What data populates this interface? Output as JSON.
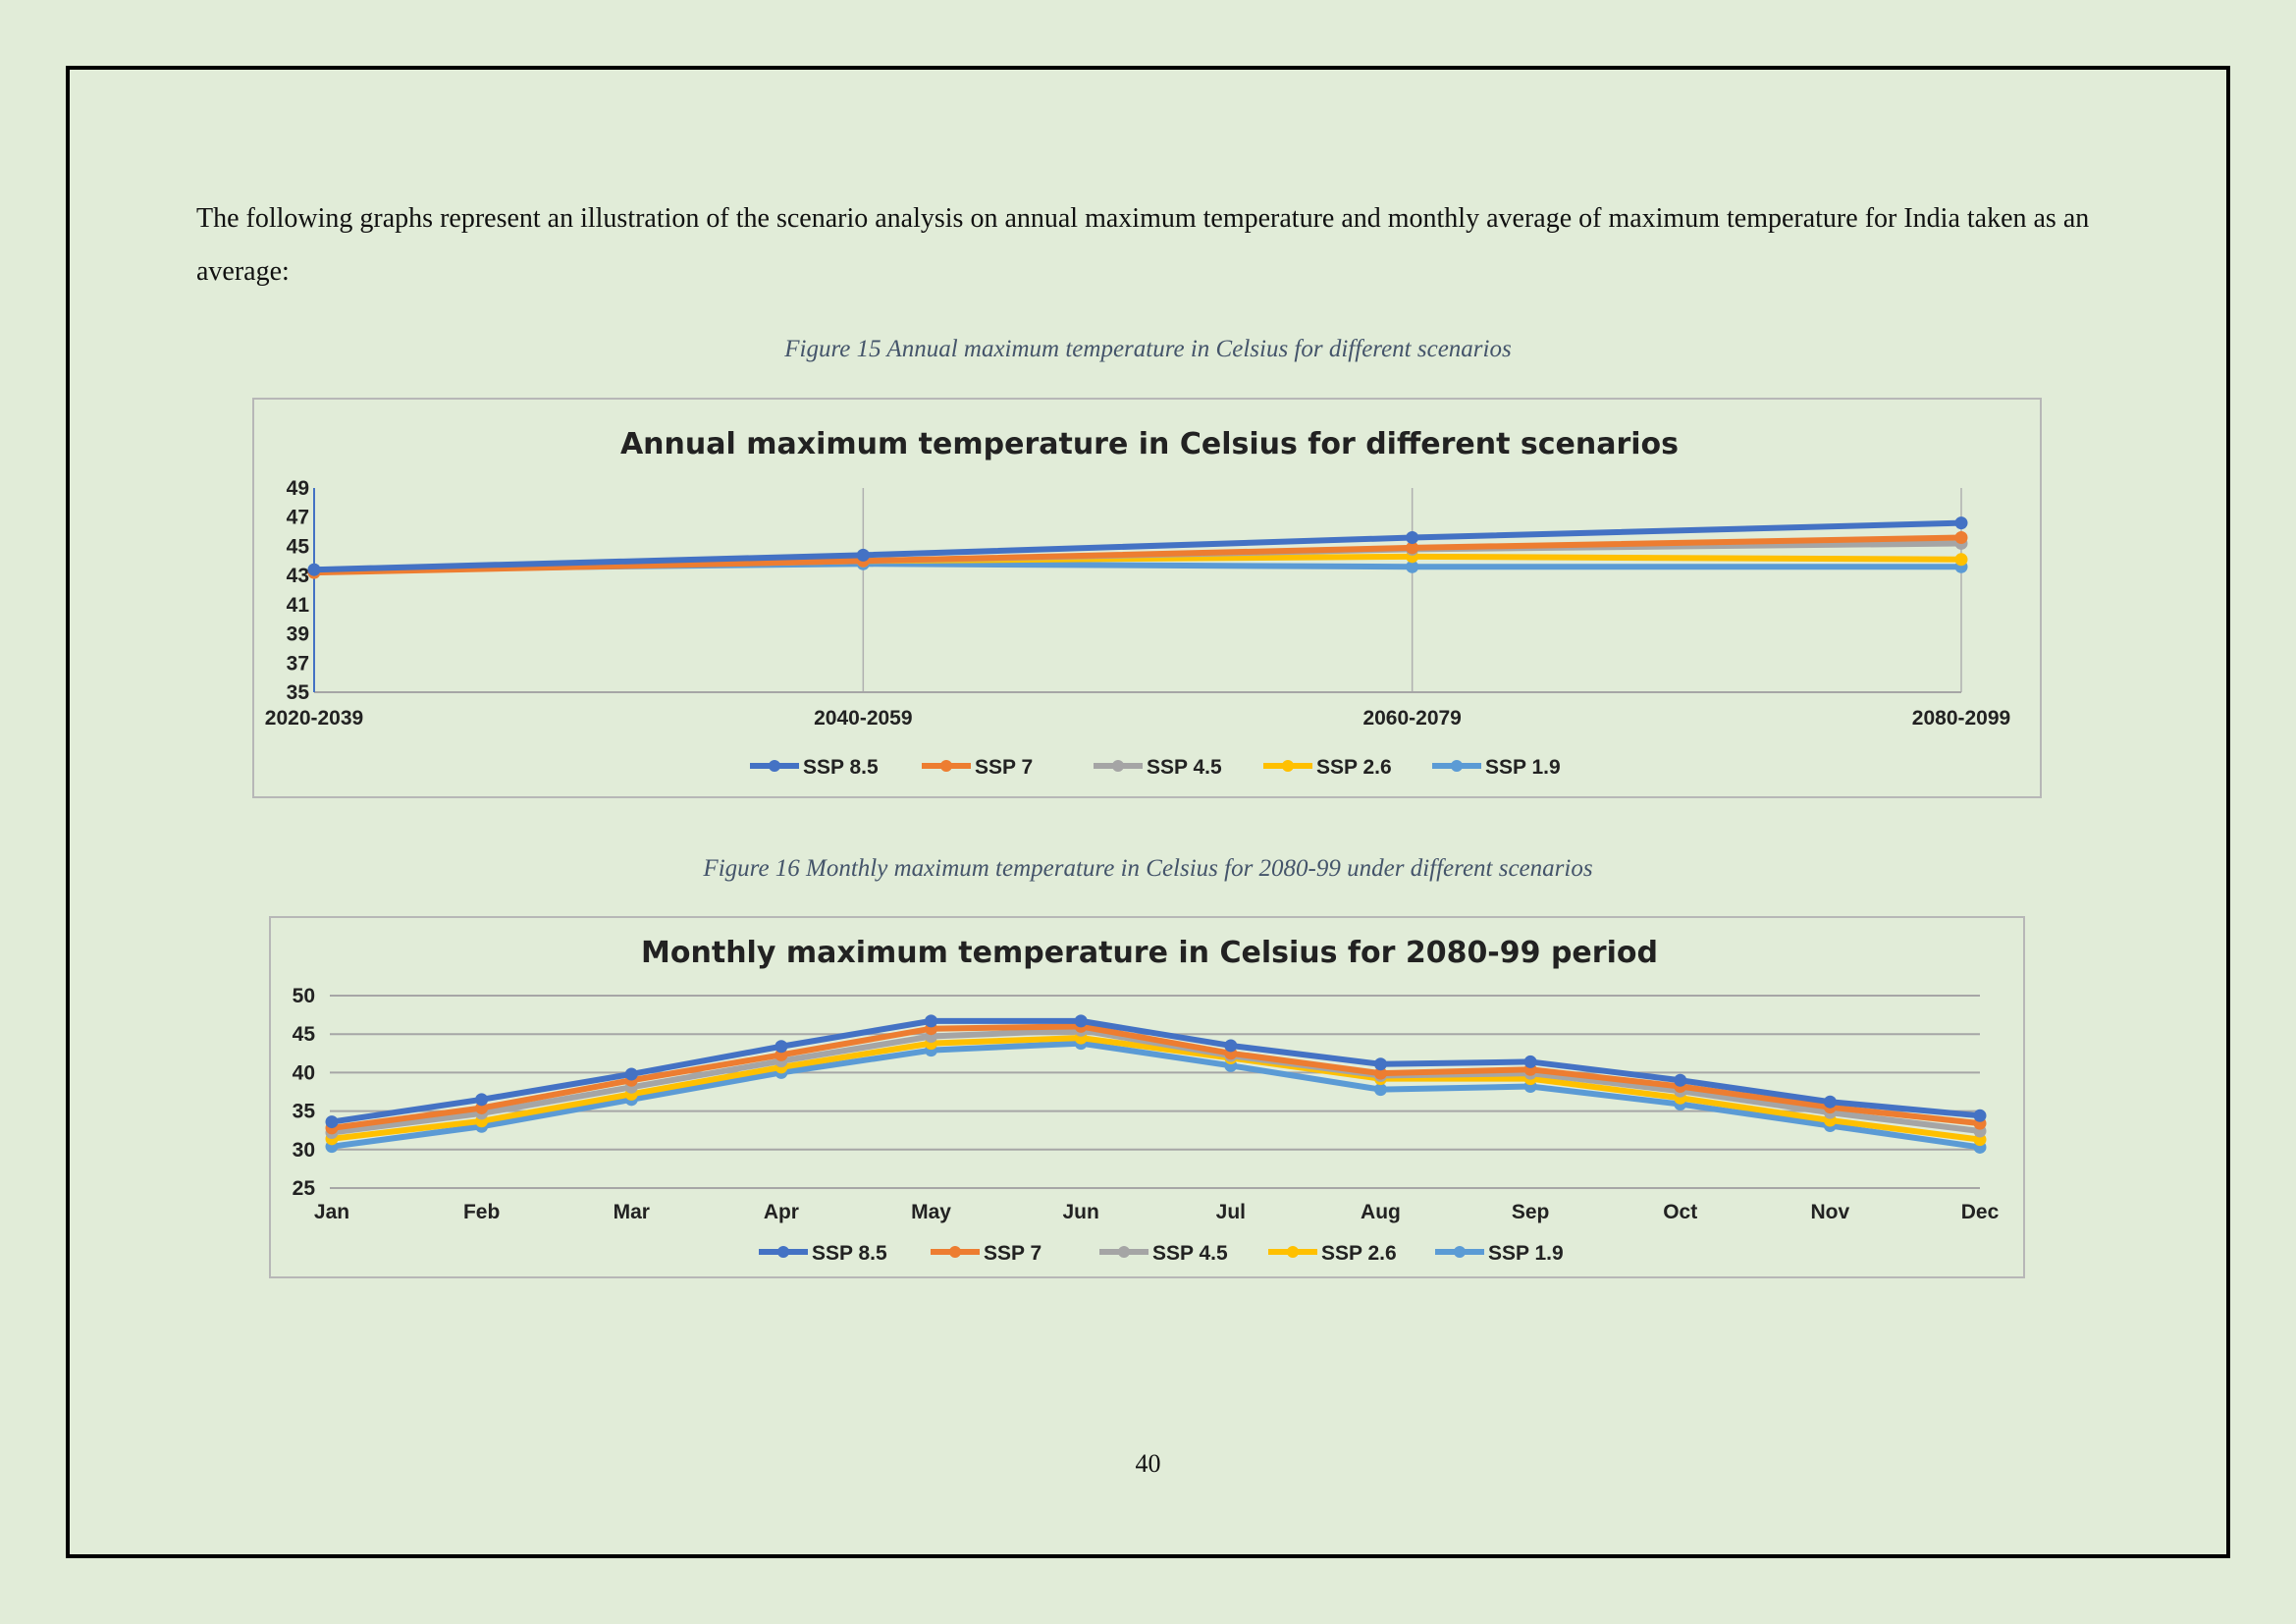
{
  "intro_text": "The following graphs represent an illustration of the scenario analysis on annual maximum temperature and monthly average of maximum temperature for India taken as an average:",
  "page_number": "40",
  "colors": {
    "SSP 8.5": "#4472c4",
    "SSP 7": "#ed7d31",
    "SSP 4.5": "#a5a5a5",
    "SSP 2.6": "#ffc000",
    "SSP 1.9": "#5b9bd5"
  },
  "figures": [
    {
      "caption": "Figure 15 Annual maximum temperature in Celsius for different scenarios"
    },
    {
      "caption": "Figure 16 Monthly maximum temperature in Celsius for 2080-99 under different scenarios"
    }
  ],
  "chart_data": [
    {
      "type": "line",
      "title": "Annual maximum temperature in Celsius for different scenarios",
      "xlabel": "",
      "ylabel": "",
      "categories": [
        "2020-2039",
        "2040-2059",
        "2060-2079",
        "2080-2099"
      ],
      "ylim": [
        35,
        49
      ],
      "yticks": [
        "49",
        "47",
        "45",
        "43",
        "41",
        "39",
        "37",
        "35"
      ],
      "grid": "vertical",
      "legend": "bottom",
      "series": [
        {
          "name": "SSP 8.5",
          "values": [
            43.4,
            44.4,
            45.6,
            46.6
          ]
        },
        {
          "name": "SSP 7",
          "values": [
            43.2,
            44.0,
            44.9,
            45.6
          ]
        },
        {
          "name": "SSP 4.5",
          "values": [
            43.3,
            44.0,
            44.8,
            45.2
          ]
        },
        {
          "name": "SSP 2.6",
          "values": [
            43.3,
            44.0,
            44.3,
            44.1
          ]
        },
        {
          "name": "SSP 1.9",
          "values": [
            43.4,
            43.8,
            43.6,
            43.6
          ]
        }
      ]
    },
    {
      "type": "line",
      "title": "Monthly maximum temperature in Celsius for 2080-99 period",
      "xlabel": "",
      "ylabel": "",
      "categories": [
        "Jan",
        "Feb",
        "Mar",
        "Apr",
        "May",
        "Jun",
        "Jul",
        "Aug",
        "Sep",
        "Oct",
        "Nov",
        "Dec"
      ],
      "ylim": [
        25,
        50
      ],
      "yticks": [
        "50",
        "45",
        "40",
        "35",
        "30",
        "25"
      ],
      "grid": "horizontal",
      "legend": "bottom",
      "series": [
        {
          "name": "SSP 8.5",
          "values": [
            33.6,
            36.5,
            39.8,
            43.4,
            46.7,
            46.7,
            43.5,
            41.1,
            41.4,
            39.0,
            36.2,
            34.4
          ]
        },
        {
          "name": "SSP 7",
          "values": [
            32.8,
            35.4,
            39.0,
            42.3,
            45.7,
            46.0,
            42.5,
            39.9,
            40.4,
            38.2,
            35.5,
            33.4
          ]
        },
        {
          "name": "SSP 4.5",
          "values": [
            32.2,
            34.7,
            38.1,
            41.5,
            44.7,
            45.5,
            42.2,
            39.6,
            39.9,
            37.6,
            34.8,
            32.4
          ]
        },
        {
          "name": "SSP 2.6",
          "values": [
            31.4,
            33.7,
            37.2,
            40.7,
            43.8,
            44.5,
            41.9,
            39.2,
            39.2,
            36.7,
            33.8,
            31.3
          ]
        },
        {
          "name": "SSP 1.9",
          "values": [
            30.4,
            33.0,
            36.5,
            40.0,
            42.9,
            43.8,
            40.9,
            37.8,
            38.2,
            35.9,
            33.1,
            30.3
          ]
        }
      ]
    }
  ]
}
